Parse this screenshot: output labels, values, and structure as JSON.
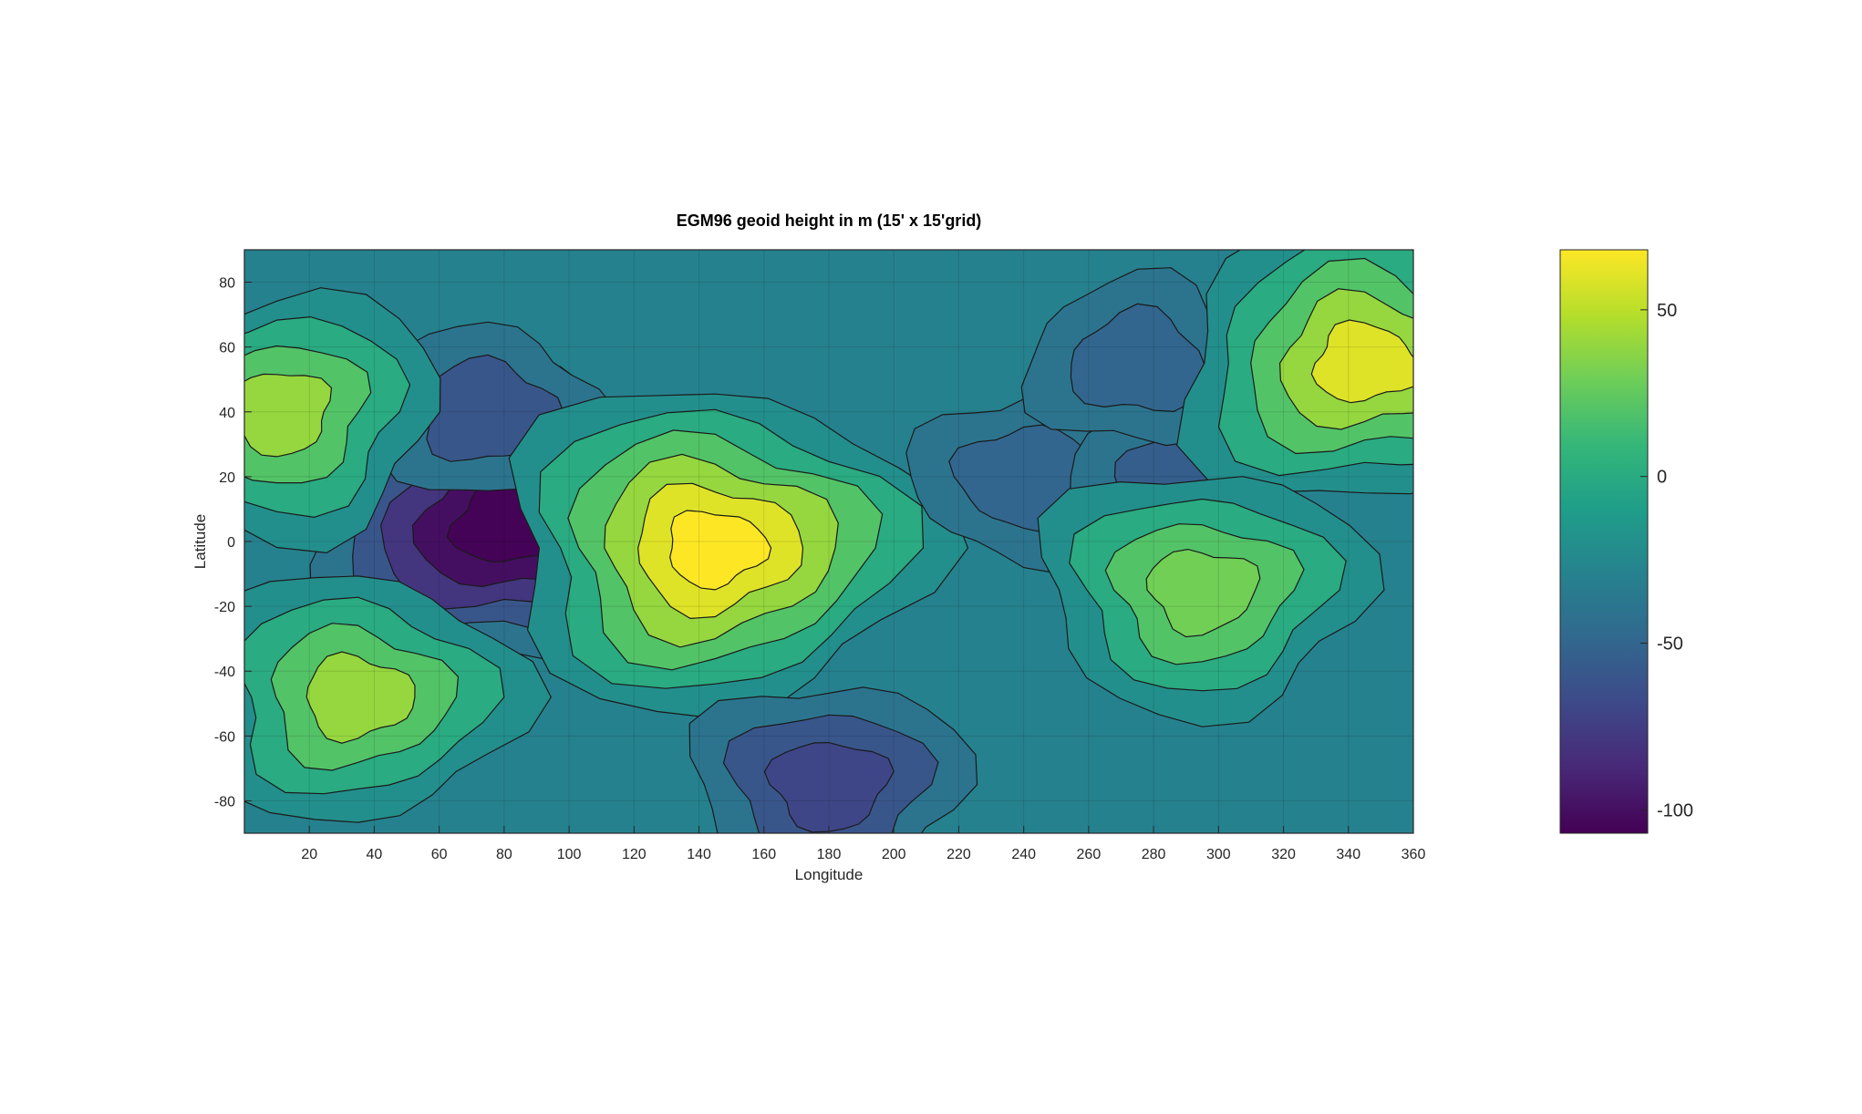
{
  "chart_data": {
    "type": "heatmap",
    "subtype": "filled-contour",
    "title": "EGM96 geoid height in m (15' x 15'grid)",
    "xlabel": "Longitude",
    "ylabel": "Latitude",
    "xlim": [
      0,
      360
    ],
    "ylim": [
      -90,
      90
    ],
    "xticks": [
      20,
      40,
      60,
      80,
      100,
      120,
      140,
      160,
      180,
      200,
      220,
      240,
      260,
      280,
      300,
      320,
      340,
      360
    ],
    "yticks": [
      80,
      60,
      40,
      20,
      0,
      -20,
      -40,
      -60,
      -80
    ],
    "grid": true,
    "colormap": "viridis",
    "colormap_stops": [
      "#440154",
      "#482878",
      "#3e4989",
      "#31688e",
      "#26828e",
      "#1f9e89",
      "#35b779",
      "#6ece58",
      "#b5de2b",
      "#fde725"
    ],
    "contour_levels": [
      -100,
      -80,
      -60,
      -40,
      -20,
      0,
      20,
      40,
      60
    ],
    "clim": [
      -107,
      68
    ],
    "colorbar": {
      "location": "right",
      "ticks": [
        50,
        0,
        -50,
        -100
      ]
    },
    "features": [
      {
        "lon": 80,
        "lat": 5,
        "value": -106
      },
      {
        "lon": 75,
        "lat": 40,
        "value": -60
      },
      {
        "lon": 145,
        "lat": -2,
        "value": 68
      },
      {
        "lon": 180,
        "lat": -75,
        "value": -70
      },
      {
        "lon": 240,
        "lat": 20,
        "value": -50
      },
      {
        "lon": 290,
        "lat": 20,
        "value": -55
      },
      {
        "lon": 275,
        "lat": 55,
        "value": -50
      },
      {
        "lon": 345,
        "lat": 55,
        "value": 60
      },
      {
        "lon": 35,
        "lat": -48,
        "value": 40
      },
      {
        "lon": 295,
        "lat": -15,
        "value": 30
      },
      {
        "lon": 10,
        "lat": 40,
        "value": 40
      }
    ]
  }
}
